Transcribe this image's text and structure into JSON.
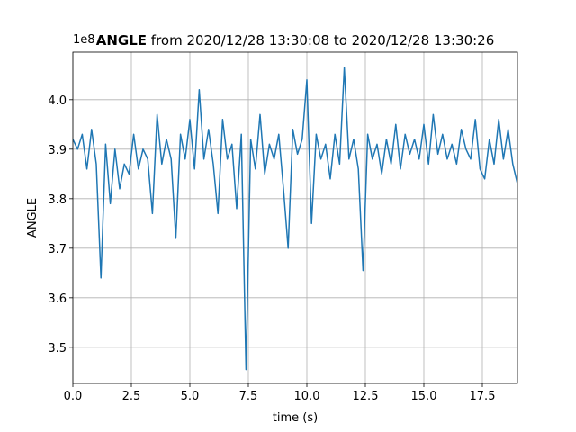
{
  "chart_data": {
    "type": "line",
    "title": {
      "bold": "ANGLE",
      "rest": "from 2020/12/28 13:30:08 to 2020/12/28 13:30:26"
    },
    "x_label": "time (s)",
    "y_label": "ANGLE",
    "y_offset_label": "1e8",
    "grid": true,
    "xlim": [
      0,
      19
    ],
    "ylim": [
      3.427,
      4.096
    ],
    "xticks": [
      {
        "value": 0,
        "label": "0.0"
      },
      2.5,
      {
        "value": 5,
        "label": "5.0"
      },
      7.5,
      {
        "value": 10,
        "label": "10.0"
      },
      12.5,
      {
        "value": 15,
        "label": "15.0"
      },
      17.5
    ],
    "yticks": [
      3.5,
      3.6,
      3.7,
      3.8,
      3.9,
      {
        "value": 4,
        "label": "4.0"
      }
    ],
    "x": [
      0,
      0.2,
      0.4,
      0.6,
      0.8,
      1,
      1.2,
      1.4,
      1.6,
      1.8,
      2,
      2.2,
      2.4,
      2.6,
      2.8,
      3,
      3.2,
      3.4,
      3.6,
      3.8,
      4,
      4.2,
      4.4,
      4.6,
      4.8,
      5,
      5.2,
      5.4,
      5.6,
      5.8,
      6,
      6.2,
      6.4,
      6.6,
      6.8,
      7,
      7.2,
      7.4,
      7.6,
      7.8,
      8,
      8.2,
      8.4,
      8.6,
      8.8,
      9,
      9.2,
      9.4,
      9.6,
      9.8,
      10,
      10.2,
      10.4,
      10.6,
      10.8,
      11,
      11.2,
      11.4,
      11.6,
      11.8,
      12,
      12.2,
      12.4,
      12.6,
      12.8,
      13,
      13.2,
      13.4,
      13.6,
      13.8,
      14,
      14.2,
      14.4,
      14.6,
      14.8,
      15,
      15.2,
      15.4,
      15.6,
      15.8,
      16,
      16.2,
      16.4,
      16.6,
      16.8,
      17,
      17.2,
      17.4,
      17.6,
      17.8,
      18,
      18.2,
      18.4,
      18.6,
      18.8,
      19
    ],
    "series": [
      {
        "name": "ANGLE",
        "color": "#1f77b4",
        "values": [
          3.92,
          3.9,
          3.93,
          3.86,
          3.94,
          3.87,
          3.64,
          3.91,
          3.79,
          3.9,
          3.82,
          3.87,
          3.85,
          3.93,
          3.86,
          3.9,
          3.88,
          3.77,
          3.97,
          3.87,
          3.92,
          3.88,
          3.72,
          3.93,
          3.88,
          3.96,
          3.86,
          4.02,
          3.88,
          3.94,
          3.87,
          3.77,
          3.96,
          3.88,
          3.91,
          3.78,
          3.93,
          3.455,
          3.92,
          3.86,
          3.97,
          3.85,
          3.91,
          3.88,
          3.93,
          3.82,
          3.7,
          3.94,
          3.89,
          3.92,
          4.04,
          3.75,
          3.93,
          3.88,
          3.91,
          3.84,
          3.93,
          3.87,
          4.065,
          3.88,
          3.92,
          3.86,
          3.655,
          3.93,
          3.88,
          3.91,
          3.85,
          3.92,
          3.87,
          3.95,
          3.86,
          3.93,
          3.89,
          3.92,
          3.88,
          3.95,
          3.87,
          3.97,
          3.89,
          3.93,
          3.88,
          3.91,
          3.87,
          3.94,
          3.9,
          3.88,
          3.96,
          3.86,
          3.84,
          3.92,
          3.87,
          3.96,
          3.88,
          3.94,
          3.87,
          3.83
        ]
      }
    ]
  }
}
